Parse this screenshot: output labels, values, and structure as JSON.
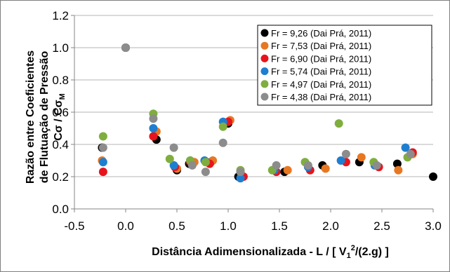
{
  "chart_data": {
    "type": "scatter",
    "title": "",
    "xlabel": {
      "prefix": "Distância Adimensionalizada - L / [ V",
      "sub": "1",
      "sup": "2",
      "suffix": "/(2.g) ]"
    },
    "ylabel": {
      "line1": "Razão entre Coeficientes",
      "line2": "de Flutuação de Pressão",
      "line3": "Cσ / Cσ",
      "line3_sub": "M"
    },
    "xlim": [
      -0.5,
      3.0
    ],
    "ylim": [
      0.0,
      1.2
    ],
    "x_ticks": [
      -0.5,
      0.0,
      0.5,
      1.0,
      1.5,
      2.0,
      2.5,
      3.0
    ],
    "x_tick_labels": [
      "-0.5",
      "0.0",
      "0.5",
      "1.0",
      "1.5",
      "2.0",
      "2.5",
      "3.0"
    ],
    "y_ticks": [
      0.0,
      0.2,
      0.4,
      0.6,
      0.8,
      1.0,
      1.2
    ],
    "y_tick_labels": [
      "0.0",
      "0.2",
      "0.4",
      "0.6",
      "0.8",
      "1.0",
      "1.2"
    ],
    "grid": "horizontal",
    "legend_position": "top-right",
    "series": [
      {
        "name": "Fr = 9,26 (Dai Prá, 2011)",
        "color": "#000000",
        "points": [
          [
            -0.23,
            0.38
          ],
          [
            0.0,
            1.0
          ],
          [
            0.3,
            0.43
          ],
          [
            0.5,
            0.24
          ],
          [
            0.62,
            0.28
          ],
          [
            0.83,
            0.29
          ],
          [
            1.0,
            0.53
          ],
          [
            1.1,
            0.2
          ],
          [
            1.55,
            0.23
          ],
          [
            1.92,
            0.27
          ],
          [
            2.28,
            0.29
          ],
          [
            2.65,
            0.28
          ],
          [
            3.0,
            0.2
          ]
        ]
      },
      {
        "name": "Fr = 7,53 (Dai Prá, 2011)",
        "color": "#E87722",
        "points": [
          [
            -0.23,
            0.3
          ],
          [
            0.0,
            1.0
          ],
          [
            0.3,
            0.48
          ],
          [
            0.5,
            0.25
          ],
          [
            0.67,
            0.29
          ],
          [
            0.85,
            0.3
          ],
          [
            1.02,
            0.55
          ],
          [
            1.13,
            0.21
          ],
          [
            1.58,
            0.24
          ],
          [
            1.95,
            0.25
          ],
          [
            2.3,
            0.32
          ],
          [
            2.66,
            0.24
          ],
          [
            2.8,
            0.34
          ]
        ]
      },
      {
        "name": "Fr = 6,90 (Dai Prá, 2011)",
        "color": "#E8141C",
        "points": [
          [
            -0.22,
            0.23
          ],
          [
            0.0,
            1.0
          ],
          [
            0.27,
            0.45
          ],
          [
            0.48,
            0.26
          ],
          [
            0.63,
            0.29
          ],
          [
            0.82,
            0.28
          ],
          [
            1.0,
            0.54
          ],
          [
            1.15,
            0.2
          ],
          [
            1.47,
            0.23
          ],
          [
            1.8,
            0.24
          ],
          [
            2.15,
            0.29
          ],
          [
            2.47,
            0.26
          ],
          [
            2.8,
            0.35
          ]
        ]
      },
      {
        "name": "Fr = 5,74 (Dai Prá, 2011)",
        "color": "#1E7FD0",
        "points": [
          [
            -0.22,
            0.29
          ],
          [
            0.0,
            1.0
          ],
          [
            0.27,
            0.5
          ],
          [
            0.47,
            0.27
          ],
          [
            0.63,
            0.3
          ],
          [
            0.77,
            0.3
          ],
          [
            0.95,
            0.54
          ],
          [
            1.12,
            0.19
          ],
          [
            1.45,
            0.24
          ],
          [
            1.78,
            0.26
          ],
          [
            2.1,
            0.3
          ],
          [
            2.43,
            0.27
          ],
          [
            2.73,
            0.38
          ]
        ]
      },
      {
        "name": "Fr = 4,97 (Dai Prá, 2011)",
        "color": "#7FAE3E",
        "points": [
          [
            -0.22,
            0.45
          ],
          [
            0.0,
            1.0
          ],
          [
            0.27,
            0.59
          ],
          [
            0.43,
            0.31
          ],
          [
            0.63,
            0.3
          ],
          [
            0.78,
            0.29
          ],
          [
            0.95,
            0.51
          ],
          [
            1.12,
            0.24
          ],
          [
            1.43,
            0.24
          ],
          [
            1.75,
            0.29
          ],
          [
            2.08,
            0.53
          ],
          [
            2.42,
            0.29
          ],
          [
            2.75,
            0.32
          ]
        ]
      },
      {
        "name": "Fr = 4,38 (Dai Prá, 2011)",
        "color": "#8C8C8C",
        "points": [
          [
            -0.22,
            0.38
          ],
          [
            0.0,
            1.0
          ],
          [
            0.27,
            0.56
          ],
          [
            0.47,
            0.38
          ],
          [
            0.65,
            0.27
          ],
          [
            0.78,
            0.23
          ],
          [
            0.95,
            0.41
          ],
          [
            1.12,
            0.23
          ],
          [
            1.47,
            0.27
          ],
          [
            1.78,
            0.27
          ],
          [
            2.15,
            0.34
          ],
          [
            2.45,
            0.27
          ],
          [
            2.78,
            0.34
          ]
        ]
      }
    ]
  }
}
